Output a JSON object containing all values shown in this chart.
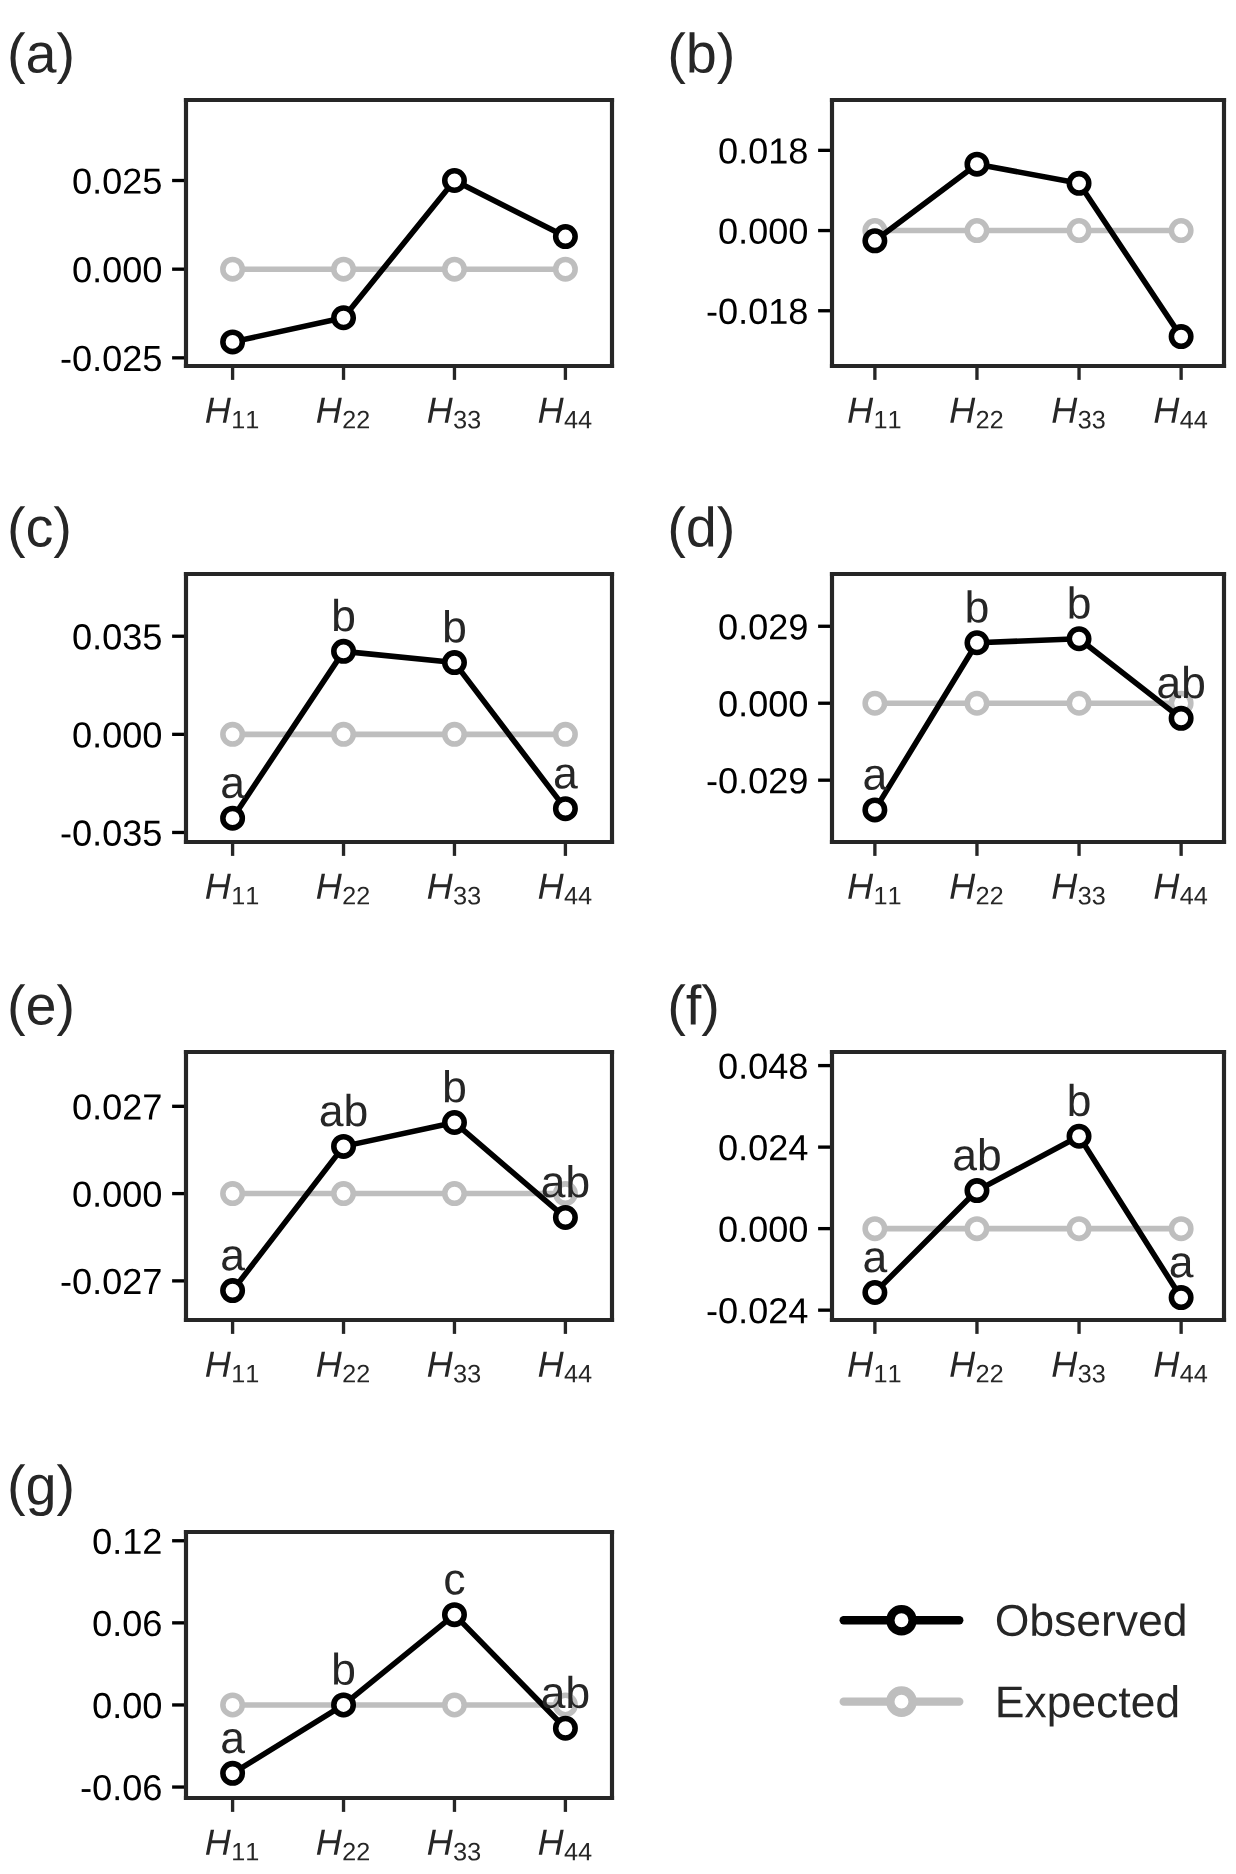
{
  "chart_data": [
    {
      "type": "line",
      "title": "(a)",
      "categories": [
        "H$_{11}$",
        "H$_{22}$",
        "H$_{33}$",
        "H$_{44}$"
      ],
      "ylim": [
        -0.0273,
        0.0477
      ],
      "yticks": [
        {
          "value": -0.025,
          "label": "-0.025"
        },
        {
          "value": 0.0,
          "label": "0.000"
        },
        {
          "value": 0.025,
          "label": "0.025"
        }
      ],
      "marker": "circle",
      "grid": false,
      "legend": false,
      "series": [
        {
          "color": "#000000",
          "values": [
            -0.0205,
            -0.0137,
            0.025,
            0.0092
          ]
        },
        {
          "color": "#bebebe",
          "values": [
            0,
            0,
            0,
            0
          ]
        }
      ]
    },
    {
      "type": "line",
      "title": "(b)",
      "categories": [
        "H$_{11}$",
        "H$_{22}$",
        "H$_{33}$",
        "H$_{44}$"
      ],
      "ylim": [
        -0.0304,
        0.0293
      ],
      "yticks": [
        {
          "value": -0.018,
          "label": "-0.018"
        },
        {
          "value": 0.0,
          "label": "0.000"
        },
        {
          "value": 0.018,
          "label": "0.018"
        }
      ],
      "marker": "circle",
      "grid": false,
      "legend": false,
      "series": [
        {
          "color": "#000000",
          "values": [
            -0.0023,
            0.0149,
            0.0106,
            -0.0238
          ]
        },
        {
          "color": "#bebebe",
          "values": [
            0,
            0,
            0,
            0
          ]
        }
      ]
    },
    {
      "type": "line",
      "title": "(c)",
      "categories": [
        "H$_{11}$",
        "H$_{22}$",
        "H$_{33}$",
        "H$_{44}$"
      ],
      "ylim": [
        -0.0384,
        0.0572
      ],
      "yticks": [
        {
          "value": -0.035,
          "label": "-0.035"
        },
        {
          "value": 0.0,
          "label": "0.000"
        },
        {
          "value": 0.035,
          "label": "0.035"
        }
      ],
      "marker": "circle",
      "grid": false,
      "legend": false,
      "series": [
        {
          "color": "#000000",
          "values": [
            -0.0299,
            0.0296,
            0.0256,
            -0.0265
          ]
        },
        {
          "color": "#bebebe",
          "values": [
            0,
            0,
            0,
            0
          ]
        }
      ],
      "annotations": [
        {
          "text": "a",
          "x": "H$_{11}$",
          "y": -0.0299
        },
        {
          "text": "b",
          "x": "H$_{22}$",
          "y": 0.0296
        },
        {
          "text": "b",
          "x": "H$_{33}$",
          "y": 0.0256
        },
        {
          "text": "a",
          "x": "H$_{44}$",
          "y": -0.0265
        }
      ]
    },
    {
      "type": "line",
      "title": "(d)",
      "categories": [
        "H$_{11}$",
        "H$_{22}$",
        "H$_{33}$",
        "H$_{44}$"
      ],
      "ylim": [
        -0.0523,
        0.0487
      ],
      "yticks": [
        {
          "value": -0.029,
          "label": "-0.029"
        },
        {
          "value": 0.0,
          "label": "0.000"
        },
        {
          "value": 0.029,
          "label": "0.029"
        }
      ],
      "marker": "circle",
      "grid": false,
      "legend": false,
      "series": [
        {
          "color": "#000000",
          "values": [
            -0.0402,
            0.0228,
            0.0243,
            -0.0057
          ]
        },
        {
          "color": "#bebebe",
          "values": [
            0,
            0,
            0,
            0
          ]
        }
      ],
      "annotations": [
        {
          "text": "a",
          "x": "H$_{11}$",
          "y": -0.0402
        },
        {
          "text": "b",
          "x": "H$_{22}$",
          "y": 0.0228
        },
        {
          "text": "b",
          "x": "H$_{33}$",
          "y": 0.0243
        },
        {
          "text": "ab",
          "x": "H$_{44}$",
          "y": -0.0057
        }
      ]
    },
    {
      "type": "line",
      "title": "(e)",
      "categories": [
        "H$_{11}$",
        "H$_{22}$",
        "H$_{33}$",
        "H$_{44}$"
      ],
      "ylim": [
        -0.0391,
        0.0438
      ],
      "yticks": [
        {
          "value": -0.027,
          "label": "-0.027"
        },
        {
          "value": 0.0,
          "label": "0.000"
        },
        {
          "value": 0.027,
          "label": "0.027"
        }
      ],
      "marker": "circle",
      "grid": false,
      "legend": false,
      "series": [
        {
          "color": "#000000",
          "values": [
            -0.03,
            0.0146,
            0.022,
            -0.0074
          ]
        },
        {
          "color": "#bebebe",
          "values": [
            0,
            0,
            0,
            0
          ]
        }
      ],
      "annotations": [
        {
          "text": "a",
          "x": "H$_{11}$",
          "y": -0.03
        },
        {
          "text": "ab",
          "x": "H$_{22}$",
          "y": 0.0146
        },
        {
          "text": "b",
          "x": "H$_{33}$",
          "y": 0.022
        },
        {
          "text": "ab",
          "x": "H$_{44}$",
          "y": -0.0074
        }
      ]
    },
    {
      "type": "line",
      "title": "(f)",
      "categories": [
        "H$_{11}$",
        "H$_{22}$",
        "H$_{33}$",
        "H$_{44}$"
      ],
      "ylim": [
        -0.0269,
        0.052
      ],
      "yticks": [
        {
          "value": -0.024,
          "label": "-0.024"
        },
        {
          "value": 0.0,
          "label": "0.000"
        },
        {
          "value": 0.024,
          "label": "0.024"
        },
        {
          "value": 0.048,
          "label": "0.048"
        }
      ],
      "marker": "circle",
      "grid": false,
      "legend": false,
      "series": [
        {
          "color": "#000000",
          "values": [
            -0.0188,
            0.0112,
            0.0272,
            -0.0203
          ]
        },
        {
          "color": "#bebebe",
          "values": [
            0,
            0,
            0,
            0
          ]
        }
      ],
      "annotations": [
        {
          "text": "a",
          "x": "H$_{11}$",
          "y": -0.0188
        },
        {
          "text": "ab",
          "x": "H$_{22}$",
          "y": 0.0112
        },
        {
          "text": "b",
          "x": "H$_{33}$",
          "y": 0.0272
        },
        {
          "text": "a",
          "x": "H$_{44}$",
          "y": -0.0203
        }
      ]
    },
    {
      "type": "line",
      "title": "(g)",
      "categories": [
        "H$_{11}$",
        "H$_{22}$",
        "H$_{33}$",
        "H$_{44}$"
      ],
      "ylim": [
        -0.068,
        0.1264
      ],
      "yticks": [
        {
          "value": -0.06,
          "label": "-0.06"
        },
        {
          "value": 0.0,
          "label": "0.00"
        },
        {
          "value": 0.06,
          "label": "0.06"
        },
        {
          "value": 0.12,
          "label": "0.12"
        }
      ],
      "marker": "circle",
      "grid": false,
      "legend": "right",
      "series": [
        {
          "name": "Observed",
          "color": "#000000",
          "values": [
            -0.05,
            0.0,
            0.066,
            -0.017
          ]
        },
        {
          "name": "Expected",
          "color": "#bebebe",
          "values": [
            0,
            0,
            0,
            0
          ]
        }
      ],
      "annotations": [
        {
          "text": "a",
          "x": "H$_{11}$",
          "y": -0.05
        },
        {
          "text": "b",
          "x": "H$_{22}$",
          "y": 0.0
        },
        {
          "text": "c",
          "x": "H$_{33}$",
          "y": 0.066
        },
        {
          "text": "ab",
          "x": "H$_{44}$",
          "y": -0.017
        }
      ]
    }
  ]
}
